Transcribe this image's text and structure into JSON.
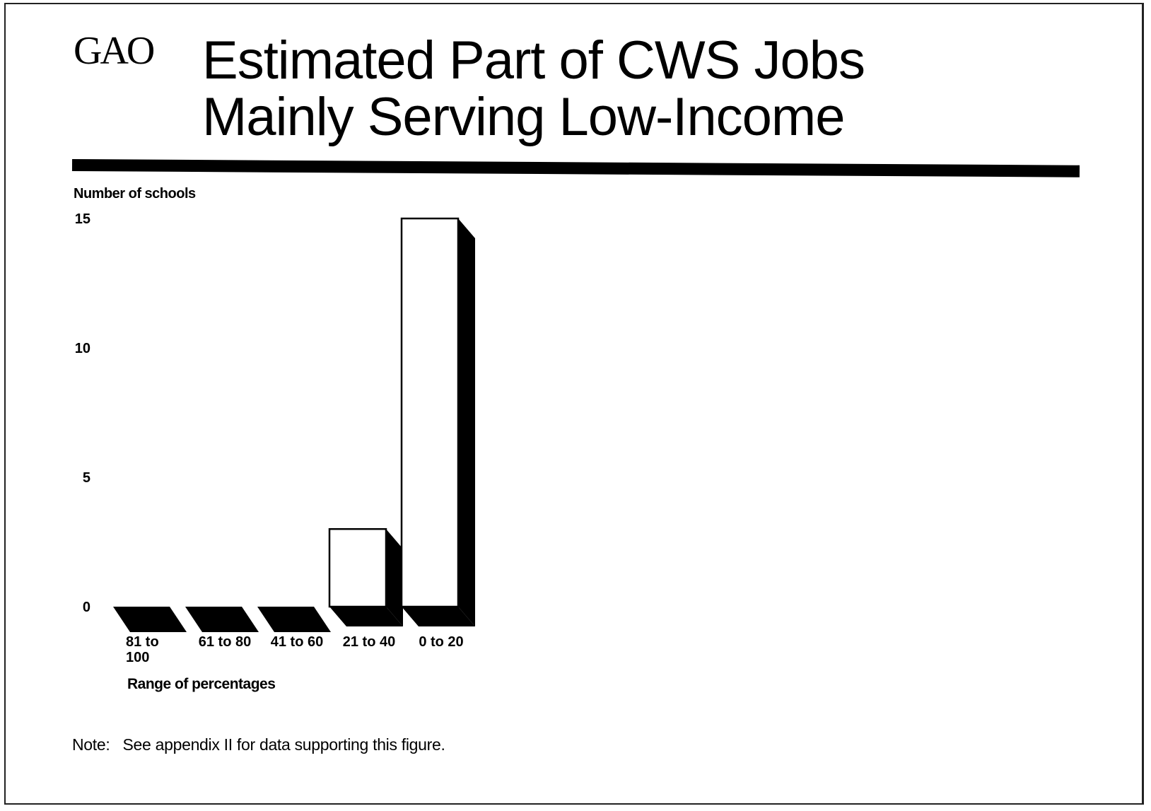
{
  "header": {
    "logo": "GAO",
    "title_line1": "Estimated Part of CWS Jobs",
    "title_line2": "Mainly Serving Low-Income"
  },
  "note": {
    "label": "Note:",
    "text": "See appendix II for data supporting this figure."
  },
  "colors": {
    "bar_face": "#ffffff",
    "bar_shadow": "#000000"
  },
  "chart_data": {
    "type": "bar",
    "title": "Estimated Part of CWS Jobs Mainly Serving Low-Income",
    "ylabel": "Number of schools",
    "xlabel": "Range of percentages",
    "ylim": [
      0,
      15
    ],
    "yticks": [
      0,
      5,
      10,
      15
    ],
    "categories": [
      "81 to 100",
      "61 to 80",
      "41 to 60",
      "21 to 40",
      "0 to 20"
    ],
    "values": [
      0,
      0,
      0,
      3,
      15
    ],
    "style": "3d",
    "grid": false
  }
}
